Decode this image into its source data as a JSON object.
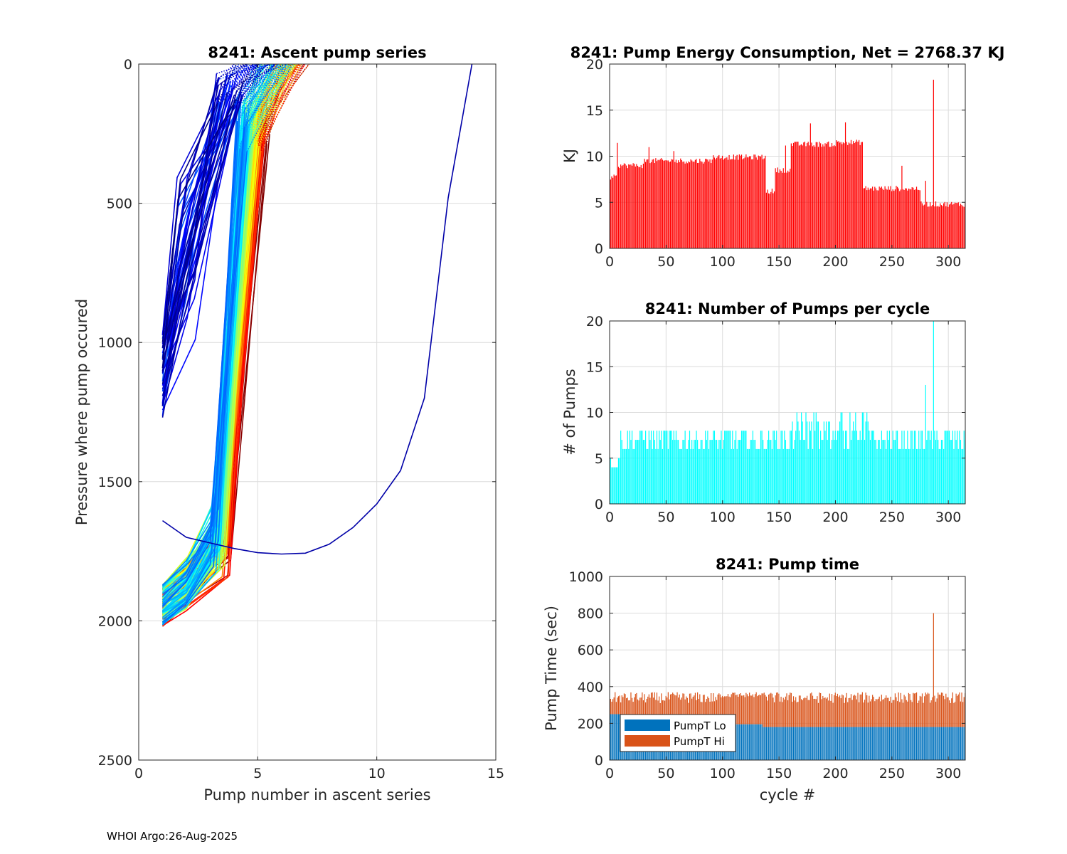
{
  "footer": "WHOI Argo:26-Aug-2025",
  "colors": {
    "energy_bar": "#ff0000",
    "pumps_bar": "#00ffff",
    "pump_lo": "#0072bd",
    "pump_hi": "#d95319",
    "grid": "#dcdcdc",
    "axis": "#262626"
  },
  "chart_data": [
    {
      "id": "ascent",
      "type": "line",
      "title": "8241: Ascent pump series",
      "xlabel": "Pump number in ascent series",
      "ylabel": "Pressure where pump occured",
      "xlim": [
        0,
        15
      ],
      "ylim": [
        0,
        2500
      ],
      "y_reversed": true,
      "xticks": [
        "0",
        "5",
        "10",
        "15"
      ],
      "yticks": [
        "0",
        "500",
        "1000",
        "1500",
        "2000",
        "2500"
      ],
      "colormap": "jet",
      "series_note": "One line per cycle (≈315), colored by cycle number",
      "outlier_series": {
        "x": [
          1,
          2,
          3,
          4,
          5,
          6,
          7,
          8,
          9,
          10,
          11,
          12,
          13,
          14
        ],
        "y": [
          1640,
          1700,
          1720,
          1740,
          1755,
          1760,
          1757,
          1725,
          1665,
          1580,
          1460,
          1200,
          480,
          0
        ]
      }
    },
    {
      "id": "energy",
      "type": "bar",
      "title": "8241: Pump Energy Consumption,  Net = 2768.37 KJ",
      "xlabel": "",
      "ylabel": "KJ",
      "xlim": [
        0,
        315
      ],
      "ylim": [
        0,
        20
      ],
      "xticks": [
        "0",
        "50",
        "100",
        "150",
        "200",
        "250",
        "300"
      ],
      "yticks": [
        "0",
        "5",
        "10",
        "15",
        "20"
      ],
      "n_cycles": 315,
      "segments": [
        {
          "from": 1,
          "to": 6,
          "level": 7.7
        },
        {
          "from": 7,
          "to": 30,
          "level": 9.0
        },
        {
          "from": 31,
          "to": 90,
          "level": 9.5
        },
        {
          "from": 91,
          "to": 138,
          "level": 9.9
        },
        {
          "from": 139,
          "to": 146,
          "level": 6.2
        },
        {
          "from": 147,
          "to": 160,
          "level": 8.5
        },
        {
          "from": 161,
          "to": 200,
          "level": 11.3
        },
        {
          "from": 201,
          "to": 224,
          "level": 11.5
        },
        {
          "from": 225,
          "to": 275,
          "level": 6.5
        },
        {
          "from": 276,
          "to": 315,
          "level": 4.8
        }
      ],
      "spike": {
        "cycle": 287,
        "value": 18.3
      }
    },
    {
      "id": "pumps",
      "type": "bar",
      "title": "8241: Number of Pumps per cycle",
      "xlabel": "",
      "ylabel": "# of Pumps",
      "xlim": [
        0,
        315
      ],
      "ylim": [
        0,
        20
      ],
      "xticks": [
        "0",
        "50",
        "100",
        "150",
        "200",
        "250",
        "300"
      ],
      "yticks": [
        "0",
        "5",
        "10",
        "15",
        "20"
      ],
      "n_cycles": 315,
      "typical_range": [
        5,
        11
      ],
      "spikes": [
        {
          "cycle": 280,
          "value": 13
        },
        {
          "cycle": 287,
          "value": 20
        }
      ]
    },
    {
      "id": "pumptime",
      "type": "bar",
      "stacked": true,
      "title": "8241: Pump time",
      "xlabel": "cycle #",
      "ylabel": "Pump Time (sec)",
      "xlim": [
        0,
        315
      ],
      "ylim": [
        0,
        1000
      ],
      "xticks": [
        "0",
        "50",
        "100",
        "150",
        "200",
        "250",
        "300"
      ],
      "yticks": [
        "0",
        "200",
        "400",
        "600",
        "800",
        "1000"
      ],
      "legend": [
        "PumpT Lo",
        "PumpT Hi"
      ],
      "legend_location": "bottom-left",
      "series": [
        {
          "name": "PumpT Lo",
          "typical_values": "250 (cycles 1-20), 230 (21-50), 205 (51-100), 195 (101-135), 180 (136-315)"
        },
        {
          "name": "PumpT Hi",
          "typical_values": "totals ≈ 310-370 s"
        }
      ],
      "spike": {
        "cycle": 287,
        "total": 800
      }
    }
  ]
}
